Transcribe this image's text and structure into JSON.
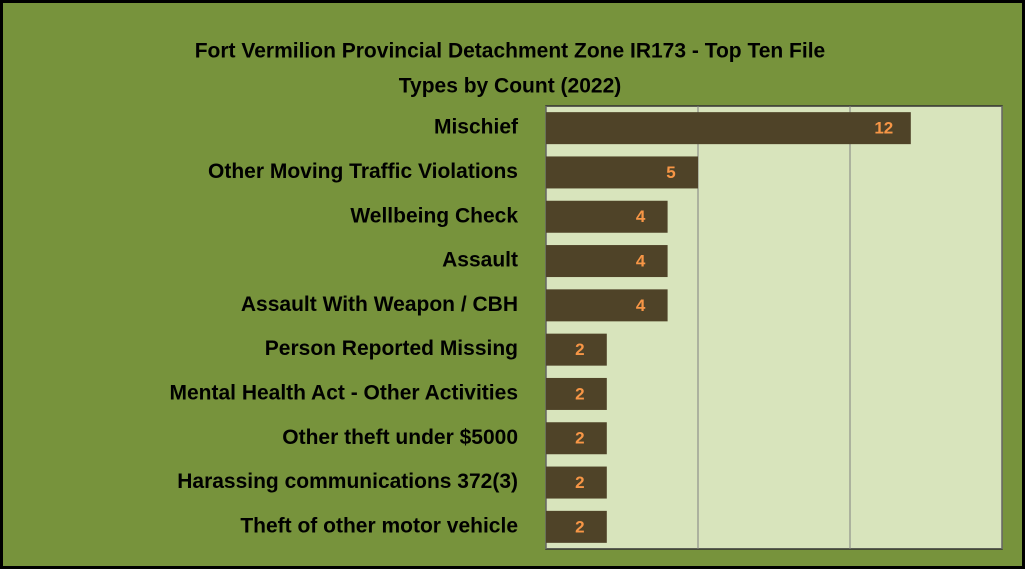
{
  "chart_data": {
    "type": "barh",
    "title": [
      "Fort Vermilion Provincial Detachment Zone IR173 - Top Ten File",
      "Types by Count (2022)"
    ],
    "categories": [
      "Mischief",
      "Other Moving Traffic Violations",
      "Wellbeing Check",
      "Assault",
      "Assault With Weapon / CBH",
      "Person Reported Missing",
      "Mental Health Act - Other Activities",
      "Other theft under $5000",
      "Harassing communications 372(3)",
      "Theft of other motor vehicle"
    ],
    "values": [
      12,
      5,
      4,
      4,
      4,
      2,
      2,
      2,
      2,
      2
    ],
    "color": "#4f4328",
    "label_color": "#f79646",
    "xlim": [
      0,
      15
    ],
    "xticks": [
      0,
      5,
      10,
      15
    ],
    "grid": true
  }
}
